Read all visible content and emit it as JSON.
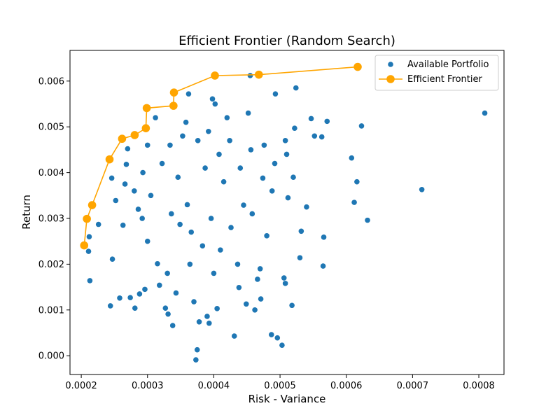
{
  "chart_data": {
    "type": "scatter",
    "title": "Efficient Frontier (Random Search)",
    "xlabel": "Risk - Variance",
    "ylabel": "Return",
    "xlim": [
      0.000183,
      0.000838
    ],
    "ylim": [
      -0.00041,
      0.00667
    ],
    "xticks": [
      0.0002,
      0.0003,
      0.0004,
      0.0005,
      0.0006,
      0.0007,
      0.0008
    ],
    "xtick_labels": [
      "0.0002",
      "0.0003",
      "0.0004",
      "0.0005",
      "0.0006",
      "0.0007",
      "0.0008"
    ],
    "yticks": [
      0.0,
      0.001,
      0.002,
      0.003,
      0.004,
      0.005,
      0.006
    ],
    "ytick_labels": [
      "0.000",
      "0.001",
      "0.002",
      "0.003",
      "0.004",
      "0.005",
      "0.006"
    ],
    "grid": false,
    "legend_position": "top-right",
    "series": [
      {
        "name": "Available Portfolio",
        "kind": "scatter",
        "color": "#1f77b4",
        "points": [
          [
            0.000213,
            0.00164
          ],
          [
            0.000211,
            0.00228
          ],
          [
            0.000212,
            0.0026
          ],
          [
            0.000226,
            0.00287
          ],
          [
            0.000244,
            0.00109
          ],
          [
            0.000247,
            0.00211
          ],
          [
            0.000252,
            0.00339
          ],
          [
            0.000246,
            0.00388
          ],
          [
            0.000258,
            0.00126
          ],
          [
            0.000263,
            0.00285
          ],
          [
            0.000266,
            0.00375
          ],
          [
            0.00027,
            0.00452
          ],
          [
            0.000274,
            0.00127
          ],
          [
            0.000281,
            0.00104
          ],
          [
            0.000288,
            0.00135
          ],
          [
            0.000296,
            0.00145
          ],
          [
            0.000286,
            0.0032
          ],
          [
            0.000293,
            0.004
          ],
          [
            0.0003,
            0.0046
          ],
          [
            0.000312,
            0.0052
          ],
          [
            0.000315,
            0.00201
          ],
          [
            0.000318,
            0.00154
          ],
          [
            0.000327,
            0.00104
          ],
          [
            0.000331,
            0.00091
          ],
          [
            0.000338,
            0.00066
          ],
          [
            0.000343,
            0.00137
          ],
          [
            0.000349,
            0.00287
          ],
          [
            0.000353,
            0.0048
          ],
          [
            0.000358,
            0.0051
          ],
          [
            0.000362,
            0.00572
          ],
          [
            0.00037,
            0.00118
          ],
          [
            0.000373,
            -9e-05
          ],
          [
            0.000375,
            0.00013
          ],
          [
            0.000378,
            0.00074
          ],
          [
            0.000383,
            0.0024
          ],
          [
            0.000387,
            0.0041
          ],
          [
            0.00039,
            0.00086
          ],
          [
            0.000393,
            0.00071
          ],
          [
            0.000398,
            0.00561
          ],
          [
            0.000402,
            0.0055
          ],
          [
            0.000405,
            0.00103
          ],
          [
            0.00041,
            0.00231
          ],
          [
            0.000415,
            0.0038
          ],
          [
            0.00042,
            0.0052
          ],
          [
            0.000431,
            0.00043
          ],
          [
            0.000438,
            0.00149
          ],
          [
            0.000445,
            0.00329
          ],
          [
            0.000449,
            0.00113
          ],
          [
            0.000452,
            0.0053
          ],
          [
            0.000455,
            0.00612
          ],
          [
            0.000462,
            0.001
          ],
          [
            0.000466,
            0.00167
          ],
          [
            0.000471,
            0.00124
          ],
          [
            0.000474,
            0.00388
          ],
          [
            0.00048,
            0.00262
          ],
          [
            0.000487,
            0.00046
          ],
          [
            0.000493,
            0.00572
          ],
          [
            0.000496,
            0.00039
          ],
          [
            0.000503,
            0.00023
          ],
          [
            0.000508,
            0.00158
          ],
          [
            0.00051,
            0.0044
          ],
          [
            0.000512,
            0.00345
          ],
          [
            0.000518,
            0.0011
          ],
          [
            0.000522,
            0.00497
          ],
          [
            0.000524,
            0.00585
          ],
          [
            0.00053,
            0.00214
          ],
          [
            0.000532,
            0.00272
          ],
          [
            0.00054,
            0.00325
          ],
          [
            0.000547,
            0.00518
          ],
          [
            0.000552,
            0.0048
          ],
          [
            0.000563,
            0.00478
          ],
          [
            0.000566,
            0.00259
          ],
          [
            0.000565,
            0.00196
          ],
          [
            0.000571,
            0.00512
          ],
          [
            0.000608,
            0.00432
          ],
          [
            0.000612,
            0.00335
          ],
          [
            0.000616,
            0.0038
          ],
          [
            0.000623,
            0.00502
          ],
          [
            0.000632,
            0.00296
          ],
          [
            0.000714,
            0.00363
          ],
          [
            0.000809,
            0.0053
          ],
          [
            0.000268,
            0.00418
          ],
          [
            0.00028,
            0.0036
          ],
          [
            0.000292,
            0.003
          ],
          [
            0.000305,
            0.0035
          ],
          [
            0.000322,
            0.0042
          ],
          [
            0.000334,
            0.0046
          ],
          [
            0.000346,
            0.0039
          ],
          [
            0.00036,
            0.0033
          ],
          [
            0.000376,
            0.0047
          ],
          [
            0.000392,
            0.0049
          ],
          [
            0.000408,
            0.0044
          ],
          [
            0.000424,
            0.0047
          ],
          [
            0.00044,
            0.0041
          ],
          [
            0.000456,
            0.0045
          ],
          [
            0.000476,
            0.0046
          ],
          [
            0.000492,
            0.0042
          ],
          [
            0.000508,
            0.0047
          ],
          [
            0.0003,
            0.0025
          ],
          [
            0.000336,
            0.0031
          ],
          [
            0.000366,
            0.0027
          ],
          [
            0.000396,
            0.003
          ],
          [
            0.000426,
            0.0028
          ],
          [
            0.000458,
            0.0031
          ],
          [
            0.000488,
            0.0036
          ],
          [
            0.00052,
            0.0039
          ],
          [
            0.00033,
            0.0018
          ],
          [
            0.000364,
            0.002
          ],
          [
            0.0004,
            0.0018
          ],
          [
            0.000436,
            0.002
          ],
          [
            0.00047,
            0.0019
          ],
          [
            0.000506,
            0.0017
          ]
        ]
      },
      {
        "name": "Efficient Frontier",
        "kind": "line-markers",
        "color": "#ffa500",
        "points": [
          [
            0.0002044,
            0.00241
          ],
          [
            0.0002085,
            0.00299
          ],
          [
            0.0002164,
            0.00329
          ],
          [
            0.0002427,
            0.00429
          ],
          [
            0.0002616,
            0.00474
          ],
          [
            0.0002806,
            0.00482
          ],
          [
            0.0002975,
            0.00497
          ],
          [
            0.0002988,
            0.00541
          ],
          [
            0.0003392,
            0.00546
          ],
          [
            0.0003399,
            0.00575
          ],
          [
            0.0004017,
            0.00612
          ],
          [
            0.000468,
            0.00614
          ],
          [
            0.0006172,
            0.00631
          ]
        ]
      }
    ]
  }
}
